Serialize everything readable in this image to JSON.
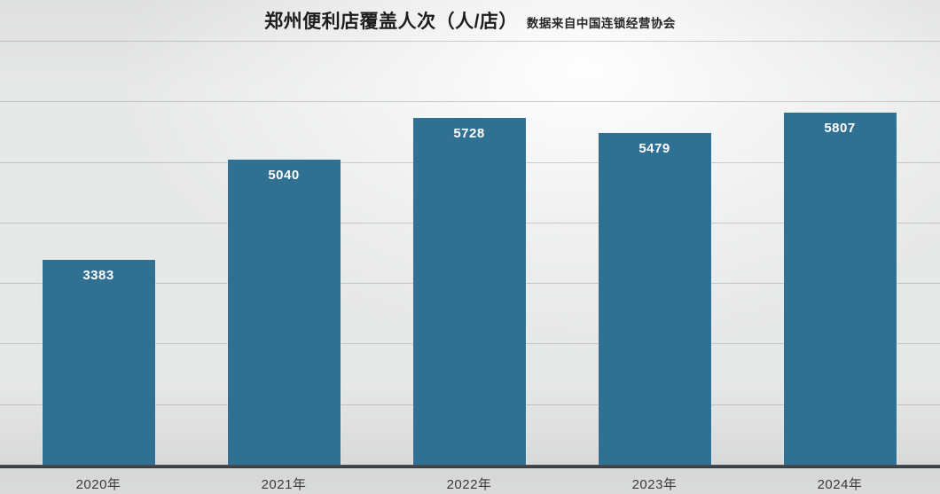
{
  "chart_data": {
    "type": "bar",
    "title": "郑州便利店覆盖人次（人/店）",
    "subtitle": "数据来自中国连锁经营协会",
    "categories": [
      "2020年",
      "2021年",
      "2022年",
      "2023年",
      "2024年"
    ],
    "values": [
      3383,
      5040,
      5728,
      5479,
      5807
    ],
    "xlabel": "",
    "ylabel": "",
    "ylim": [
      0,
      7000
    ],
    "grid_step": 1000,
    "grid": "horizontal-only",
    "legend": "none",
    "value_labels": "inside-top, white bold",
    "colors": {
      "bar": "#2f7093",
      "background": "#e6e7e7",
      "gridline": "#9a9e9e",
      "axis_line": "#383d41",
      "title_text": "#1d1d1d",
      "tick_text": "#3a3a3a",
      "value_text": "#ffffff"
    }
  }
}
